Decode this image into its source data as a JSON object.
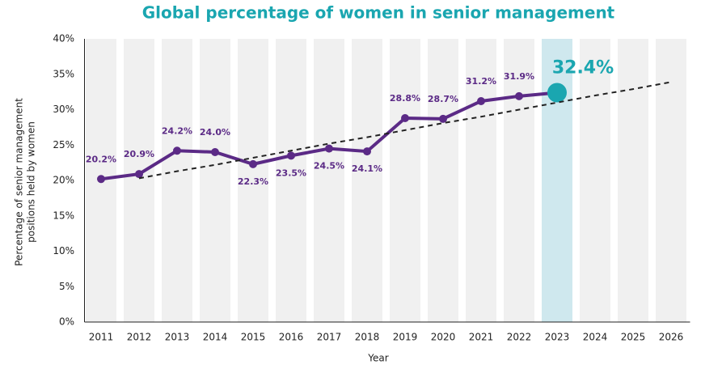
{
  "chart_data": {
    "type": "line",
    "title": "Global percentage of women in senior management",
    "ylabel": [
      "Percentage of senior management",
      "positions held by women"
    ],
    "xlabel": "Year",
    "categories": [
      "2011",
      "2012",
      "2013",
      "2014",
      "2015",
      "2016",
      "2017",
      "2018",
      "2019",
      "2020",
      "2021",
      "2022",
      "2023",
      "2024",
      "2025",
      "2026"
    ],
    "series": [
      {
        "color": "#5b2a86",
        "values": [
          20.2,
          20.9,
          24.2,
          24.0,
          22.3,
          23.5,
          24.5,
          24.1,
          28.8,
          28.7,
          31.2,
          31.9,
          32.4,
          null,
          null,
          null
        ],
        "value_labels": [
          "20.2%",
          "20.9%",
          "24.2%",
          "24.0%",
          "22.3%",
          "23.5%",
          "24.5%",
          "24.1%",
          "28.8%",
          "28.7%",
          "31.2%",
          "31.9%",
          "32.4%",
          null,
          null,
          null
        ]
      },
      {
        "color": "#222222",
        "dashed": true,
        "values": [
          null,
          20.3,
          21.3,
          22.2,
          23.2,
          24.2,
          25.2,
          26.1,
          27.1,
          28.1,
          29.0,
          30.0,
          31.0,
          32.0,
          32.9,
          33.9
        ]
      }
    ],
    "highlight": "2023",
    "highlight_color": "#1aa6b0",
    "band_color": "#cfe8ee",
    "ylim": [
      0,
      40
    ],
    "yticks": [
      {
        "value": 0,
        "label": "0%"
      },
      {
        "value": 5,
        "label": "5%"
      },
      {
        "value": 10,
        "label": "10%"
      },
      {
        "value": 15,
        "label": "15%"
      },
      {
        "value": 20,
        "label": "20%"
      },
      {
        "value": 25,
        "label": "25%"
      },
      {
        "value": 30,
        "label": "30%"
      },
      {
        "value": 35,
        "label": "35%"
      },
      {
        "value": 40,
        "label": "40%"
      }
    ]
  }
}
